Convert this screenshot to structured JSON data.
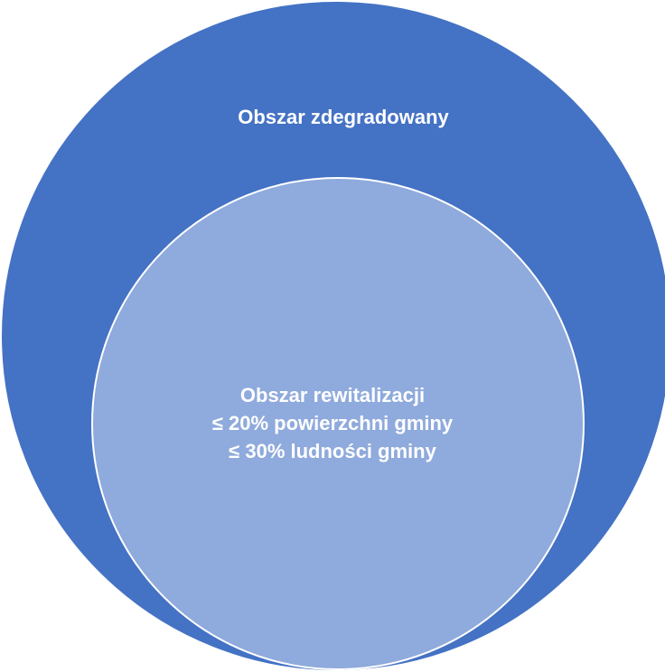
{
  "outer": {
    "label": "Obszar zdegradowany",
    "color": "#4472C4"
  },
  "inner": {
    "lines": [
      "Obszar rewitalizacji",
      "≤ 20% powierzchni gminy",
      "≤ 30% ludności gminy"
    ],
    "color": "#8FAADC"
  },
  "border_color": "#FFFFFF",
  "text_color": "#FFFFFF"
}
